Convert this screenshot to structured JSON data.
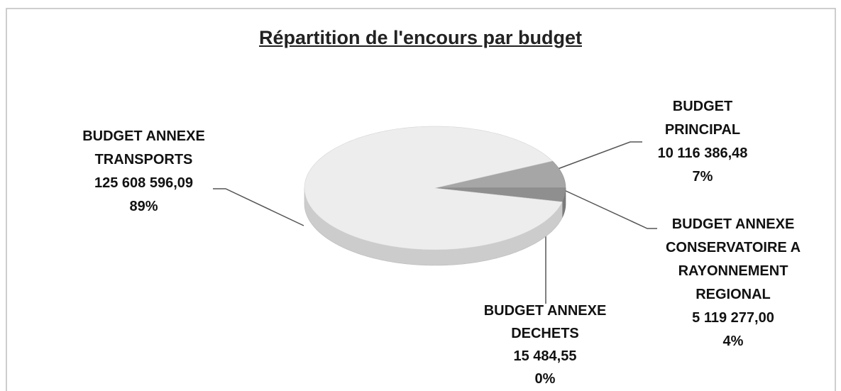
{
  "chart_data": {
    "type": "pie",
    "title": "Répartition de l'encours par budget",
    "categories": [
      "BUDGET PRINCIPAL",
      "BUDGET ANNEXE CONSERVATOIRE A RAYONNEMENT REGIONAL",
      "BUDGET ANNEXE DECHETS",
      "BUDGET ANNEXE TRANSPORTS"
    ],
    "values": [
      10116386.48,
      5119277.0,
      15484.55,
      125608596.09
    ],
    "value_labels": [
      "10 116 386,48",
      "5 119 277,00",
      "15 484,55",
      "125 608 596,09"
    ],
    "percent_labels": [
      "7%",
      "4%",
      "0%",
      "89%"
    ],
    "colors": [
      "#a6a6a6",
      "#8f8f8f",
      "#7a7a7a",
      "#ededed"
    ],
    "three_d": true
  }
}
